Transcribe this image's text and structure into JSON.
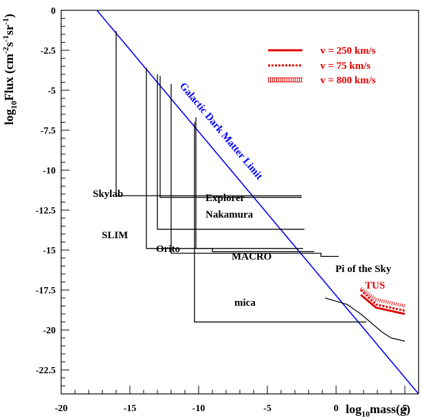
{
  "chart_data": {
    "type": "line",
    "xlabel": {
      "base": "log",
      "sub": "10",
      "rest": "mass(g)"
    },
    "ylabel": {
      "base": "log",
      "sub": "10",
      "rest": "Flux (cm",
      "sup1": "-2",
      "mid1": "s",
      "sup2": "-1",
      "mid2": "sr",
      "sup3": "-1",
      "end": ")"
    },
    "xlim": [
      -20,
      6
    ],
    "ylim": [
      -24,
      0
    ],
    "x_ticks": [
      -20,
      -15,
      -10,
      -5,
      0,
      5
    ],
    "x_tick_labels": [
      "-20",
      "-15",
      "-10",
      "-5",
      "0",
      "5"
    ],
    "y_ticks": [
      0,
      -2.5,
      -5,
      -7.5,
      -10,
      -12.5,
      -15,
      -17.5,
      -20,
      -22.5
    ],
    "y_tick_labels": [
      "0",
      "-2.5",
      "-5",
      "-7.5",
      "-10",
      "-12.5",
      "-15",
      "-17.5",
      "-20",
      "-22.5"
    ],
    "dark_matter_limit": {
      "label": "Galactic Dark Matter Limit",
      "color": "#0000ff",
      "points": [
        [
          -17.4,
          0
        ],
        [
          6,
          -24
        ]
      ]
    },
    "experiments": [
      {
        "name": "Skylab",
        "points": [
          [
            -16,
            -1.3
          ],
          [
            -16,
            -11.6
          ],
          [
            -2.5,
            -11.6
          ]
        ]
      },
      {
        "name": "Explorer",
        "points": [
          [
            -12.8,
            -4.1
          ],
          [
            -12.8,
            -11.7
          ],
          [
            -2.5,
            -11.7
          ]
        ]
      },
      {
        "name": "Nakamura",
        "points": [
          [
            -13,
            -4.0
          ],
          [
            -13,
            -13.7
          ],
          [
            -2.3,
            -13.7
          ]
        ]
      },
      {
        "name": "SLIM",
        "points": [
          [
            -13.8,
            -3.6
          ],
          [
            -13.8,
            -14.9
          ],
          [
            -2.4,
            -14.9
          ]
        ]
      },
      {
        "name": "Orito",
        "points": [
          [
            -12,
            -4.6
          ],
          [
            -12,
            -15.2
          ],
          [
            -1.1,
            -15.2
          ],
          [
            -1.1,
            -15.4
          ],
          [
            0.2,
            -15.4
          ]
        ]
      },
      {
        "name": "MACRO",
        "points": [
          [
            -10.2,
            -6.7
          ],
          [
            -10.2,
            -14.9
          ],
          [
            -9,
            -14.9
          ],
          [
            -9,
            -15.1
          ],
          [
            -1.6,
            -15.1
          ]
        ]
      },
      {
        "name": "mica",
        "points": [
          [
            -10.3,
            -7.0
          ],
          [
            -10.3,
            -19.5
          ],
          [
            2.2,
            -19.5
          ]
        ]
      },
      {
        "name": "Pi of the Sky",
        "points": [
          [
            -0.8,
            -18.0
          ],
          [
            0.8,
            -18.4
          ],
          [
            1.8,
            -19.0
          ],
          [
            3.3,
            -20.1
          ],
          [
            4,
            -20.5
          ],
          [
            5,
            -20.7
          ]
        ]
      }
    ],
    "experiment_labels": [
      "Skylab",
      "Explorer",
      "Nakamura",
      "SLIM",
      "Orito",
      "MACRO",
      "mica",
      "Pi of the Sky"
    ],
    "tus": {
      "name": "TUS",
      "color": "#e00000",
      "series": [
        {
          "name": "v = 250 km/s",
          "style": "solid",
          "points": [
            [
              1.8,
              -17.8
            ],
            [
              2.9,
              -18.6
            ],
            [
              5,
              -19.0
            ]
          ]
        },
        {
          "name": "v = 75 km/s",
          "style": "dashed",
          "points": [
            [
              1.8,
              -17.5
            ],
            [
              2.9,
              -18.4
            ],
            [
              5,
              -18.8
            ]
          ]
        },
        {
          "name": "v = 800 km/s",
          "style": "hatched",
          "points": [
            [
              1.8,
              -17.4
            ],
            [
              2.9,
              -18.1
            ],
            [
              5,
              -18.5
            ]
          ]
        }
      ]
    },
    "legend": [
      "v = 250 km/s",
      "v = 75 km/s",
      "v = 800 km/s"
    ],
    "legend_position": "top-right"
  }
}
